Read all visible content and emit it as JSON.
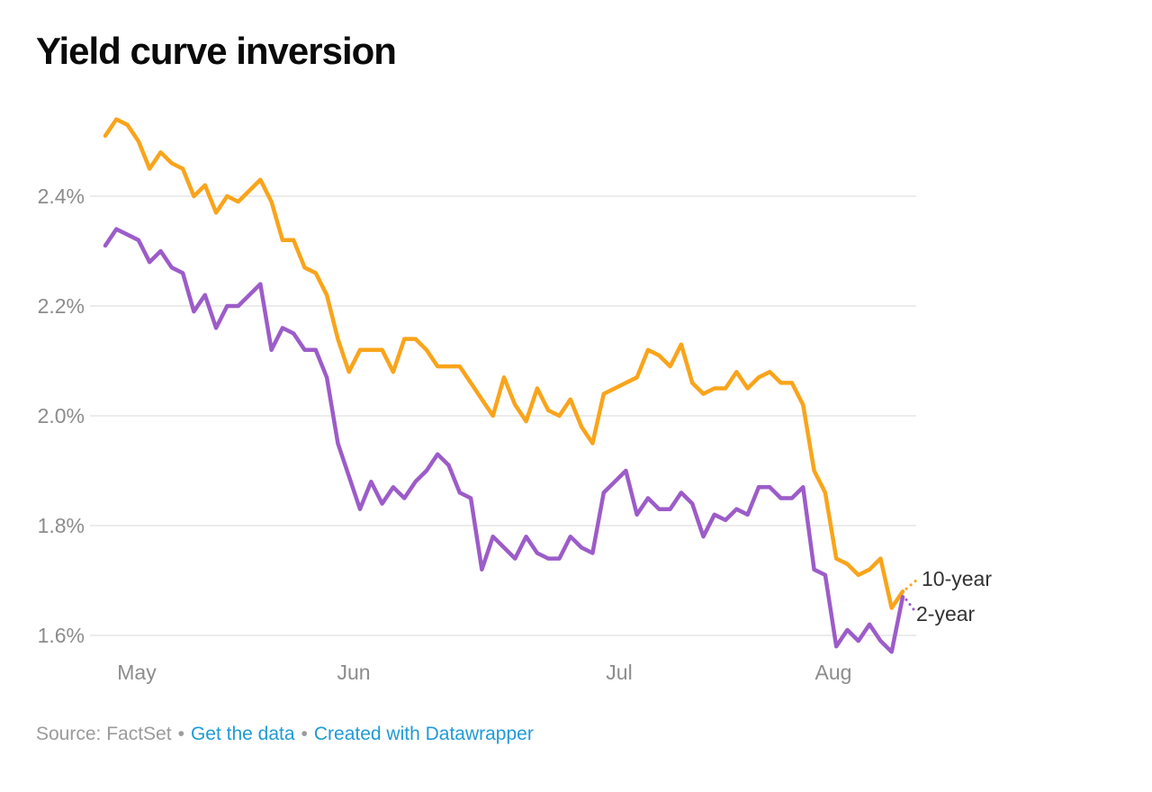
{
  "title": "Yield curve inversion",
  "series_labels": {
    "line1": "10-year",
    "line2": "2-year"
  },
  "footer": {
    "source": "Source: FactSet",
    "separator": "•",
    "link1": "Get the data",
    "link2": "Created with Datawrapper"
  },
  "colors": {
    "ten_year": "#f9a41b",
    "two_year": "#9c5cc9",
    "grid": "#dadada",
    "axis_text": "#8c8c8c",
    "series_label_text": "#333333",
    "link_blue": "#1f9bd6",
    "source_gray": "#9b9b9b",
    "title_black": "#0a0a0a"
  },
  "chart_data": {
    "type": "line",
    "title": "Yield curve inversion",
    "xlabel": "",
    "ylabel": "",
    "grid": true,
    "legend_position": "right-end-labels",
    "ylim": [
      1.55,
      2.56
    ],
    "y_ticks": [
      "2.4%",
      "2.2%",
      "2.0%",
      "1.8%",
      "1.6%"
    ],
    "x_ticks": [
      "May",
      "Jun",
      "Jul",
      "Aug"
    ],
    "x": [
      "May 1",
      "May 2",
      "May 3",
      "May 6",
      "May 7",
      "May 8",
      "May 9",
      "May 10",
      "May 13",
      "May 14",
      "May 15",
      "May 16",
      "May 17",
      "May 20",
      "May 21",
      "May 22",
      "May 23",
      "May 24",
      "May 28",
      "May 29",
      "May 30",
      "May 31",
      "Jun 3",
      "Jun 4",
      "Jun 5",
      "Jun 6",
      "Jun 7",
      "Jun 10",
      "Jun 11",
      "Jun 12",
      "Jun 13",
      "Jun 14",
      "Jun 17",
      "Jun 18",
      "Jun 19",
      "Jun 20",
      "Jun 21",
      "Jun 24",
      "Jun 25",
      "Jun 26",
      "Jun 27",
      "Jun 28",
      "Jul 1",
      "Jul 2",
      "Jul 3",
      "Jul 5",
      "Jul 8",
      "Jul 9",
      "Jul 10",
      "Jul 11",
      "Jul 12",
      "Jul 15",
      "Jul 16",
      "Jul 17",
      "Jul 18",
      "Jul 19",
      "Jul 22",
      "Jul 23",
      "Jul 24",
      "Jul 25",
      "Jul 26",
      "Jul 29",
      "Jul 30",
      "Jul 31",
      "Aug 1",
      "Aug 2",
      "Aug 5",
      "Aug 6",
      "Aug 7",
      "Aug 8",
      "Aug 9",
      "Aug 12",
      "Aug 13"
    ],
    "series": [
      {
        "name": "10-year",
        "color": "#f9a41b",
        "values": [
          2.51,
          2.54,
          2.53,
          2.5,
          2.45,
          2.48,
          2.46,
          2.45,
          2.4,
          2.42,
          2.37,
          2.4,
          2.39,
          2.41,
          2.43,
          2.39,
          2.32,
          2.32,
          2.27,
          2.26,
          2.22,
          2.14,
          2.08,
          2.12,
          2.12,
          2.12,
          2.08,
          2.14,
          2.14,
          2.12,
          2.09,
          2.09,
          2.09,
          2.06,
          2.03,
          2.0,
          2.07,
          2.02,
          1.99,
          2.05,
          2.01,
          2.0,
          2.03,
          1.98,
          1.95,
          2.04,
          2.05,
          2.06,
          2.07,
          2.12,
          2.11,
          2.09,
          2.13,
          2.06,
          2.04,
          2.05,
          2.05,
          2.08,
          2.05,
          2.07,
          2.08,
          2.06,
          2.06,
          2.02,
          1.9,
          1.86,
          1.74,
          1.73,
          1.71,
          1.72,
          1.74,
          1.65,
          1.68
        ]
      },
      {
        "name": "2-year",
        "color": "#9c5cc9",
        "values": [
          2.31,
          2.34,
          2.33,
          2.32,
          2.28,
          2.3,
          2.27,
          2.26,
          2.19,
          2.22,
          2.16,
          2.2,
          2.2,
          2.22,
          2.24,
          2.12,
          2.16,
          2.15,
          2.12,
          2.12,
          2.07,
          1.95,
          1.89,
          1.83,
          1.88,
          1.84,
          1.87,
          1.85,
          1.88,
          1.9,
          1.93,
          1.91,
          1.86,
          1.85,
          1.72,
          1.78,
          1.76,
          1.74,
          1.78,
          1.75,
          1.74,
          1.74,
          1.78,
          1.76,
          1.75,
          1.86,
          1.88,
          1.9,
          1.82,
          1.85,
          1.83,
          1.83,
          1.86,
          1.84,
          1.78,
          1.82,
          1.81,
          1.83,
          1.82,
          1.87,
          1.87,
          1.85,
          1.85,
          1.87,
          1.72,
          1.71,
          1.58,
          1.61,
          1.59,
          1.62,
          1.59,
          1.57,
          1.67
        ]
      }
    ]
  }
}
